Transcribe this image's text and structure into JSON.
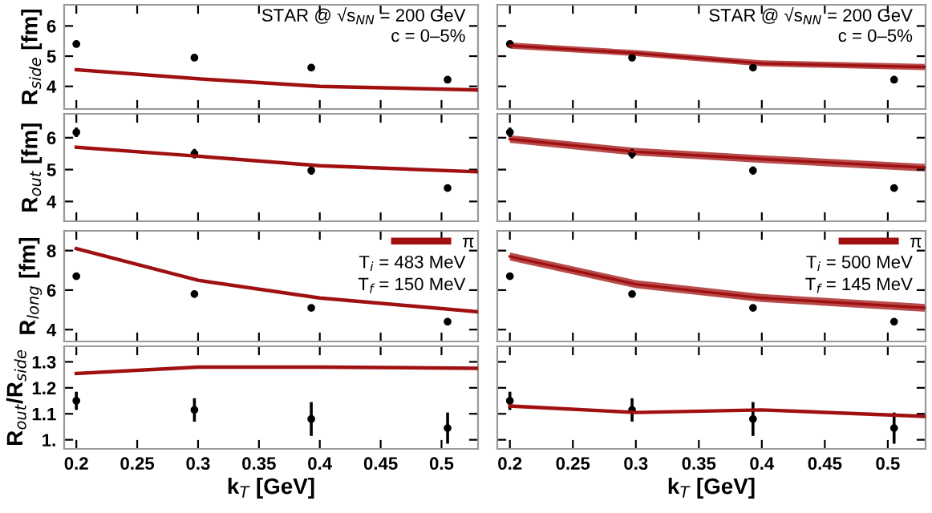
{
  "chart_data": [
    {
      "type": "line",
      "ylabel": "R$_{side}$ [fm]",
      "xlim": [
        0.19,
        0.53
      ],
      "ylim": [
        3.25,
        6.7
      ],
      "xticks": [
        0.2,
        0.25,
        0.3,
        0.35,
        0.4,
        0.45,
        0.5
      ],
      "yticks": [
        4,
        5,
        6
      ],
      "tick_labels": "y",
      "annotations": [
        "STAR @ √s$_{NN}$ = 200 GeV",
        "c = 0–5%"
      ],
      "series": [
        {
          "color": "#a01010",
          "x": [
            0.2,
            0.3,
            0.4,
            0.53
          ],
          "values": [
            4.55,
            4.25,
            4.0,
            3.88
          ]
        },
        {
          "type": "scatter",
          "color": "#000000",
          "marker": "circle",
          "x": [
            0.2,
            0.297,
            0.393,
            0.505
          ],
          "values": [
            5.4,
            4.95,
            4.62,
            4.22
          ],
          "errors": [
            0.03,
            0.03,
            0.08,
            0.08
          ]
        }
      ]
    },
    {
      "type": "line",
      "xlim": [
        0.19,
        0.53
      ],
      "ylim": [
        3.25,
        6.7
      ],
      "xticks": [
        0.2,
        0.25,
        0.3,
        0.35,
        0.4,
        0.45,
        0.5
      ],
      "yticks": [
        4,
        5,
        6
      ],
      "tick_labels": false,
      "annotations": [
        "STAR @ √s$_{NN}$ = 200 GeV",
        "c = 0–5%"
      ],
      "series": [
        {
          "color": "#a01010",
          "x": [
            0.2,
            0.3,
            0.4,
            0.53
          ],
          "values": [
            5.35,
            5.1,
            4.76,
            4.64
          ],
          "lower": [
            5.25,
            5.0,
            4.66,
            4.54
          ],
          "upper": [
            5.45,
            5.2,
            4.86,
            4.74
          ]
        },
        {
          "type": "scatter",
          "color": "#000000",
          "marker": "circle",
          "x": [
            0.2,
            0.297,
            0.393,
            0.505
          ],
          "values": [
            5.4,
            4.95,
            4.62,
            4.22
          ],
          "errors": [
            0.03,
            0.03,
            0.08,
            0.08
          ]
        }
      ]
    },
    {
      "type": "line",
      "ylabel": "R$_{out}$ [fm]",
      "xlim": [
        0.19,
        0.53
      ],
      "ylim": [
        3.38,
        6.75
      ],
      "xticks": [
        0.2,
        0.25,
        0.3,
        0.35,
        0.4,
        0.45,
        0.5
      ],
      "yticks": [
        4,
        5,
        6
      ],
      "tick_labels": "y",
      "series": [
        {
          "color": "#a01010",
          "x": [
            0.2,
            0.3,
            0.4,
            0.53
          ],
          "values": [
            5.7,
            5.42,
            5.12,
            4.93
          ]
        },
        {
          "type": "scatter",
          "color": "#000000",
          "marker": "circle",
          "x": [
            0.2,
            0.297,
            0.393,
            0.505
          ],
          "values": [
            6.17,
            5.5,
            4.97,
            4.42
          ],
          "errors": [
            0.15,
            0.15,
            0.13,
            0.1
          ]
        }
      ]
    },
    {
      "type": "line",
      "xlim": [
        0.19,
        0.53
      ],
      "ylim": [
        3.38,
        6.75
      ],
      "xticks": [
        0.2,
        0.25,
        0.3,
        0.35,
        0.4,
        0.45,
        0.5
      ],
      "yticks": [
        4,
        5,
        6
      ],
      "tick_labels": false,
      "series": [
        {
          "color": "#a01010",
          "x": [
            0.2,
            0.3,
            0.4,
            0.53
          ],
          "values": [
            5.96,
            5.56,
            5.33,
            5.06
          ],
          "lower": [
            5.84,
            5.44,
            5.21,
            4.94
          ],
          "upper": [
            6.08,
            5.68,
            5.45,
            5.18
          ]
        },
        {
          "type": "scatter",
          "color": "#000000",
          "marker": "circle",
          "x": [
            0.2,
            0.297,
            0.393,
            0.505
          ],
          "values": [
            6.17,
            5.5,
            4.97,
            4.42
          ],
          "errors": [
            0.15,
            0.15,
            0.13,
            0.1
          ]
        }
      ]
    },
    {
      "type": "line",
      "ylabel": "R$_{long}$ [fm]",
      "xlim": [
        0.19,
        0.53
      ],
      "ylim": [
        3.4,
        9.0
      ],
      "xticks": [
        0.2,
        0.25,
        0.3,
        0.35,
        0.4,
        0.45,
        0.5
      ],
      "yticks": [
        4,
        6,
        8
      ],
      "tick_labels": "y",
      "legend": "top right",
      "annotations": [
        "T$_{i}$ = 483 MeV",
        "T$_{f}$ = 150 MeV"
      ],
      "series": [
        {
          "name": "π",
          "color": "#a01010",
          "x": [
            0.2,
            0.3,
            0.4,
            0.53
          ],
          "values": [
            8.1,
            6.5,
            5.6,
            4.9
          ]
        },
        {
          "type": "scatter",
          "color": "#000000",
          "marker": "circle",
          "x": [
            0.2,
            0.297,
            0.393,
            0.505
          ],
          "values": [
            6.7,
            5.8,
            5.1,
            4.4
          ],
          "errors": [
            0.05,
            0.05,
            0.15,
            0.12
          ]
        }
      ]
    },
    {
      "type": "line",
      "xlim": [
        0.19,
        0.53
      ],
      "ylim": [
        3.4,
        9.0
      ],
      "xticks": [
        0.2,
        0.25,
        0.3,
        0.35,
        0.4,
        0.45,
        0.5
      ],
      "yticks": [
        4,
        6,
        8
      ],
      "tick_labels": false,
      "legend": "top right",
      "annotations": [
        "T$_{i}$ = 500 MeV",
        "T$_{f}$ = 145 MeV"
      ],
      "series": [
        {
          "name": "π",
          "color": "#a01010",
          "x": [
            0.2,
            0.3,
            0.4,
            0.53
          ],
          "values": [
            7.7,
            6.3,
            5.6,
            5.1
          ],
          "lower": [
            7.5,
            6.1,
            5.4,
            4.9
          ],
          "upper": [
            7.9,
            6.5,
            5.8,
            5.3
          ]
        },
        {
          "type": "scatter",
          "color": "#000000",
          "marker": "circle",
          "x": [
            0.2,
            0.297,
            0.393,
            0.505
          ],
          "values": [
            6.7,
            5.8,
            5.1,
            4.4
          ],
          "errors": [
            0.05,
            0.05,
            0.15,
            0.12
          ]
        }
      ]
    },
    {
      "type": "line",
      "ylabel": "R$_{out}$/R$_{side}$",
      "xlabel": "k$_{T}$ [GeV]",
      "xlim": [
        0.19,
        0.53
      ],
      "ylim": [
        0.965,
        1.36
      ],
      "xticks": [
        0.2,
        0.25,
        0.3,
        0.35,
        0.4,
        0.45,
        0.5
      ],
      "yticks": [
        {
          "value": 1,
          "label": "1."
        },
        1.1,
        1.2,
        1.3
      ],
      "series": [
        {
          "color": "#a01010",
          "x": [
            0.2,
            0.3,
            0.4,
            0.53
          ],
          "values": [
            1.255,
            1.28,
            1.28,
            1.275
          ]
        },
        {
          "type": "scatter",
          "color": "#000000",
          "marker": "circle",
          "x": [
            0.2,
            0.297,
            0.393,
            0.505
          ],
          "values": [
            1.15,
            1.115,
            1.08,
            1.045
          ],
          "errors": [
            0.035,
            0.045,
            0.065,
            0.06
          ]
        }
      ]
    },
    {
      "type": "line",
      "xlabel": "k$_{T}$ [GeV]",
      "xlim": [
        0.19,
        0.53
      ],
      "ylim": [
        0.965,
        1.36
      ],
      "xticks": [
        0.2,
        0.25,
        0.3,
        0.35,
        0.4,
        0.45,
        0.5
      ],
      "yticks": [
        1,
        1.1,
        1.2,
        1.3
      ],
      "tick_labels": "x",
      "series": [
        {
          "color": "#a01010",
          "x": [
            0.2,
            0.3,
            0.4,
            0.53
          ],
          "values": [
            1.13,
            1.105,
            1.115,
            1.09
          ]
        },
        {
          "type": "scatter",
          "color": "#000000",
          "marker": "circle",
          "x": [
            0.2,
            0.297,
            0.393,
            0.505
          ],
          "values": [
            1.15,
            1.115,
            1.08,
            1.045
          ],
          "errors": [
            0.035,
            0.045,
            0.065,
            0.06
          ]
        }
      ]
    }
  ]
}
